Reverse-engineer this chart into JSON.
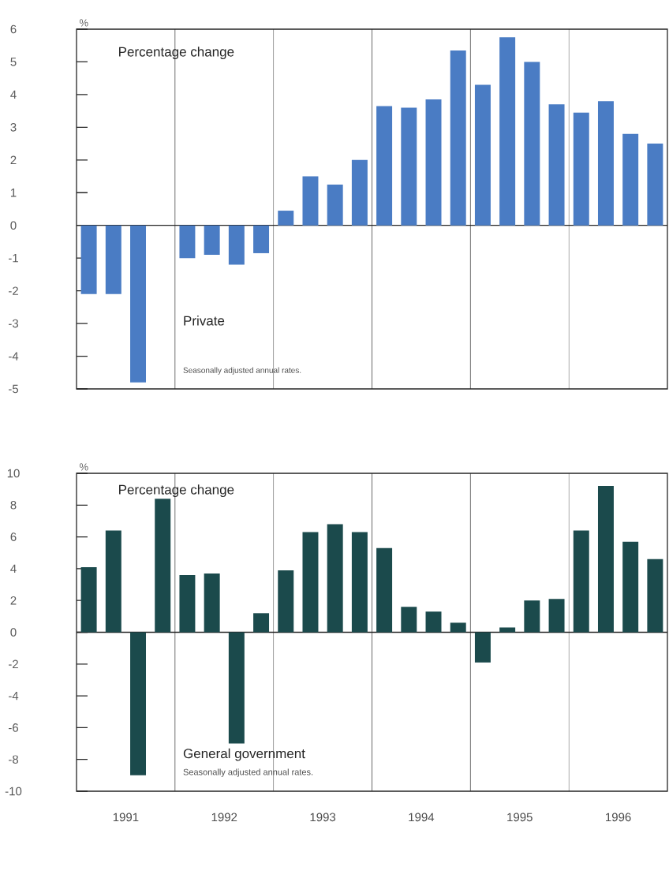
{
  "chart_data": [
    {
      "type": "bar",
      "ylabel": "%",
      "annotations": [
        "Percentage change",
        "Private",
        "Seasonally adjusted annual rates."
      ],
      "x": [
        1991.125,
        1991.375,
        1991.625,
        1991.875,
        1992.125,
        1992.375,
        1992.625,
        1992.875,
        1993.125,
        1993.375,
        1993.625,
        1993.875,
        1994.125,
        1994.375,
        1994.625,
        1994.875,
        1995.125,
        1995.375,
        1995.625,
        1995.875,
        1996.125,
        1996.375,
        1996.625,
        1996.875
      ],
      "values": [
        -2.1,
        -2.1,
        -4.8,
        null,
        -1.0,
        -0.9,
        -1.2,
        -0.85,
        0.45,
        1.5,
        1.25,
        2.0,
        3.65,
        3.6,
        3.85,
        5.35,
        4.3,
        5.75,
        5.0,
        3.7,
        3.45,
        3.8,
        2.8,
        2.5
      ],
      "color": "#4a7cc4",
      "xlim": [
        1991,
        1997
      ],
      "ylim": [
        -5,
        6
      ],
      "yticks": [
        -5,
        -4,
        -3,
        -2,
        -1,
        0,
        1,
        2,
        3,
        4,
        5,
        6
      ],
      "ref_lines": [
        {
          "axis": "y",
          "value": 0
        },
        {
          "axis": "x",
          "value": 1992
        },
        {
          "axis": "x",
          "value": 1993
        },
        {
          "axis": "x",
          "value": 1994
        },
        {
          "axis": "x",
          "value": 1995
        },
        {
          "axis": "x",
          "value": 1996
        }
      ],
      "tick_labels": "y",
      "grid": false
    },
    {
      "type": "bar",
      "ylabel": "%",
      "annotations": [
        "Percentage change",
        "General government",
        "Seasonally adjusted annual rates."
      ],
      "x": [
        1991.125,
        1991.375,
        1991.625,
        1991.875,
        1992.125,
        1992.375,
        1992.625,
        1992.875,
        1993.125,
        1993.375,
        1993.625,
        1993.875,
        1994.125,
        1994.375,
        1994.625,
        1994.875,
        1995.125,
        1995.375,
        1995.625,
        1995.875,
        1996.125,
        1996.375,
        1996.625,
        1996.875
      ],
      "values": [
        4.1,
        6.4,
        -9.0,
        8.4,
        3.6,
        3.7,
        -7.0,
        1.2,
        3.9,
        6.3,
        6.8,
        6.3,
        5.3,
        1.6,
        1.3,
        0.6,
        -1.9,
        0.3,
        2.0,
        2.1,
        6.4,
        9.2,
        5.7,
        4.6
      ],
      "color": "#1b4a4c",
      "xlim": [
        1991,
        1997
      ],
      "xticks": [
        {
          "value": 1991.5,
          "label": "1991"
        },
        {
          "value": 1992.5,
          "label": "1992"
        },
        {
          "value": 1993.5,
          "label": "1993"
        },
        {
          "value": 1994.5,
          "label": "1994"
        },
        {
          "value": 1995.5,
          "label": "1995"
        },
        {
          "value": 1996.5,
          "label": "1996"
        }
      ],
      "ylim": [
        -10,
        10
      ],
      "yticks": [
        -10,
        -8,
        -6,
        -4,
        -2,
        0,
        2,
        4,
        6,
        8,
        10
      ],
      "ref_lines": [
        {
          "axis": "y",
          "value": 0
        },
        {
          "axis": "x",
          "value": 1992
        },
        {
          "axis": "x",
          "value": 1993
        },
        {
          "axis": "x",
          "value": 1994
        },
        {
          "axis": "x",
          "value": 1995
        },
        {
          "axis": "x",
          "value": 1996
        }
      ],
      "grid": false
    }
  ]
}
